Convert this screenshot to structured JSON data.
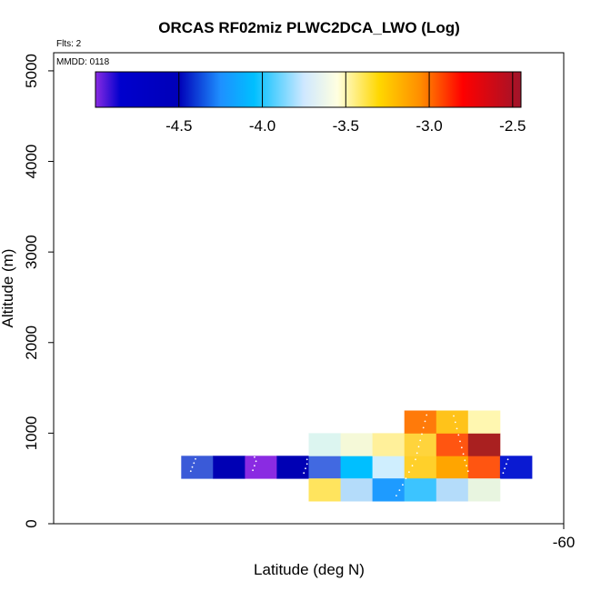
{
  "chart_data": {
    "type": "heatmap",
    "title": "ORCAS RF02miz PLWC2DCA_LWO (Log)",
    "annotations": {
      "flights": "Flts: 2",
      "date": "MMDD: 0118"
    },
    "xlabel": "Latitude (deg N)",
    "ylabel": "Altitude (m)",
    "x_ticks": [
      {
        "value": -60,
        "label": "-60"
      }
    ],
    "y_ticks": [
      {
        "value": 0,
        "label": "0"
      },
      {
        "value": 1000,
        "label": "1000"
      },
      {
        "value": 2000,
        "label": "2000"
      },
      {
        "value": 3000,
        "label": "3000"
      },
      {
        "value": 4000,
        "label": "4000"
      },
      {
        "value": 5000,
        "label": "5000"
      }
    ],
    "xlim": [
      -63.2,
      -60.0
    ],
    "ylim": [
      0,
      5200
    ],
    "bin_size": {
      "x": 0.2,
      "y": 250
    },
    "colorbar": {
      "range": [
        -5.0,
        -2.45
      ],
      "ticks": [
        {
          "value": -4.5,
          "label": "-4.5"
        },
        {
          "value": -4.0,
          "label": "-4.0"
        },
        {
          "value": -3.5,
          "label": "-3.5"
        },
        {
          "value": -3.0,
          "label": "-3.0"
        },
        {
          "value": -2.5,
          "label": "-2.5"
        }
      ],
      "stops": [
        {
          "v": -5.0,
          "color": "#8a2be2"
        },
        {
          "v": -4.85,
          "color": "#0000cd"
        },
        {
          "v": -4.5,
          "color": "#0000b8"
        },
        {
          "v": -4.25,
          "color": "#1e90ff"
        },
        {
          "v": -4.05,
          "color": "#00bfff"
        },
        {
          "v": -3.75,
          "color": "#cfe8ff"
        },
        {
          "v": -3.55,
          "color": "#ffffe0"
        },
        {
          "v": -3.3,
          "color": "#ffd700"
        },
        {
          "v": -3.05,
          "color": "#ff8c00"
        },
        {
          "v": -2.8,
          "color": "#ff0000"
        },
        {
          "v": -2.45,
          "color": "#a0142a"
        }
      ]
    },
    "cells": [
      {
        "lat": -62.4,
        "alt": 750,
        "value": -4.4,
        "color": "#3a5ad8"
      },
      {
        "lat": -62.2,
        "alt": 750,
        "value": -4.62,
        "color": "#0000b4"
      },
      {
        "lat": -62.0,
        "alt": 750,
        "value": -4.8,
        "color": "#8a2be2"
      },
      {
        "lat": -61.8,
        "alt": 750,
        "value": -4.6,
        "color": "#0000b4"
      },
      {
        "lat": -61.6,
        "alt": 750,
        "value": -4.35,
        "color": "#4169e1"
      },
      {
        "lat": -61.4,
        "alt": 750,
        "value": -4.05,
        "color": "#00bfff"
      },
      {
        "lat": -61.2,
        "alt": 750,
        "value": -3.75,
        "color": "#cfeefe"
      },
      {
        "lat": -61.0,
        "alt": 750,
        "value": -3.3,
        "color": "#ffd02a"
      },
      {
        "lat": -60.8,
        "alt": 750,
        "value": -3.1,
        "color": "#ffa500"
      },
      {
        "lat": -60.6,
        "alt": 750,
        "value": -2.95,
        "color": "#ff5511"
      },
      {
        "lat": -60.4,
        "alt": 750,
        "value": -4.55,
        "color": "#0a1ad2"
      },
      {
        "lat": -61.6,
        "alt": 1000,
        "value": -3.65,
        "color": "#dcf5f0"
      },
      {
        "lat": -61.4,
        "alt": 1000,
        "value": -3.55,
        "color": "#f5f9d8"
      },
      {
        "lat": -61.2,
        "alt": 1000,
        "value": -3.4,
        "color": "#fff09a"
      },
      {
        "lat": -61.0,
        "alt": 1000,
        "value": -3.3,
        "color": "#ffd43c"
      },
      {
        "lat": -60.8,
        "alt": 1000,
        "value": -2.95,
        "color": "#ff5511"
      },
      {
        "lat": -60.6,
        "alt": 1000,
        "value": -2.55,
        "color": "#a92020"
      },
      {
        "lat": -61.0,
        "alt": 1250,
        "value": -3.1,
        "color": "#ff7a0a"
      },
      {
        "lat": -60.8,
        "alt": 1250,
        "value": -3.25,
        "color": "#ffc31a"
      },
      {
        "lat": -60.6,
        "alt": 1250,
        "value": -3.45,
        "color": "#fff7b0"
      },
      {
        "lat": -61.6,
        "alt": 500,
        "value": -3.35,
        "color": "#ffe45e"
      },
      {
        "lat": -61.4,
        "alt": 500,
        "value": -3.85,
        "color": "#b4dcfa"
      },
      {
        "lat": -61.2,
        "alt": 500,
        "value": -4.2,
        "color": "#1e9bff"
      },
      {
        "lat": -61.0,
        "alt": 500,
        "value": -4.0,
        "color": "#3cc4ff"
      },
      {
        "lat": -60.8,
        "alt": 500,
        "value": -3.85,
        "color": "#b4dcfa"
      },
      {
        "lat": -60.6,
        "alt": 500,
        "value": -3.6,
        "color": "#e8f5e0"
      }
    ],
    "track_points": [
      [
        -62.34,
        580
      ],
      [
        -62.33,
        625
      ],
      [
        -62.32,
        670
      ],
      [
        -62.31,
        715
      ],
      [
        -61.95,
        590
      ],
      [
        -61.94,
        640
      ],
      [
        -61.93,
        690
      ],
      [
        -61.94,
        735
      ],
      [
        -61.63,
        560
      ],
      [
        -61.62,
        610
      ],
      [
        -61.61,
        660
      ],
      [
        -61.61,
        710
      ],
      [
        -61.05,
        310
      ],
      [
        -61.03,
        370
      ],
      [
        -61.01,
        430
      ],
      [
        -60.99,
        500
      ],
      [
        -60.97,
        570
      ],
      [
        -60.95,
        640
      ],
      [
        -60.93,
        710
      ],
      [
        -60.92,
        780
      ],
      [
        -60.91,
        850
      ],
      [
        -60.9,
        920
      ],
      [
        -60.89,
        990
      ],
      [
        -60.88,
        1060
      ],
      [
        -60.87,
        1130
      ],
      [
        -60.86,
        1200
      ],
      [
        -60.85,
        1260
      ],
      [
        -60.7,
        1260
      ],
      [
        -60.69,
        1190
      ],
      [
        -60.68,
        1120
      ],
      [
        -60.67,
        1050
      ],
      [
        -60.66,
        980
      ],
      [
        -60.65,
        910
      ],
      [
        -60.64,
        840
      ],
      [
        -60.63,
        770
      ],
      [
        -60.62,
        700
      ],
      [
        -60.61,
        640
      ],
      [
        -60.6,
        580
      ],
      [
        -60.38,
        560
      ],
      [
        -60.37,
        610
      ],
      [
        -60.36,
        660
      ],
      [
        -60.35,
        710
      ]
    ]
  }
}
